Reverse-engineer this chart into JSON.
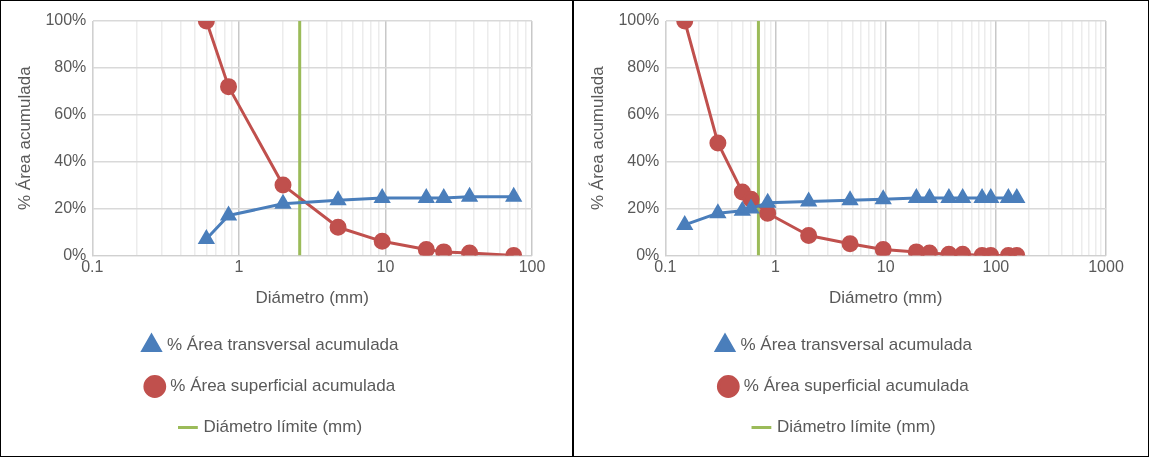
{
  "chart_data": [
    {
      "type": "line",
      "xlabel": "Diámetro (mm)",
      "ylabel": "% Área acumulada",
      "x": [
        0.6,
        0.85,
        2,
        4.75,
        9.5,
        19,
        25,
        37.5,
        75
      ],
      "series": [
        {
          "name": "% Área transversal acumulada",
          "color": "#4a7ebb",
          "marker": "triangle",
          "values": [
            7,
            17,
            22,
            23.5,
            24.5,
            24.5,
            24.5,
            25,
            25
          ]
        },
        {
          "name": "% Área superficial acumulada",
          "color": "#c0504d",
          "marker": "circle",
          "values": [
            100,
            72,
            30,
            12,
            6,
            2.5,
            1.5,
            1,
            0
          ]
        }
      ],
      "ref_lines": [
        {
          "axis": "x",
          "value": 2.6,
          "label": "Diámetro límite (mm)",
          "color": "#9bbb59"
        }
      ],
      "xlim": [
        0.1,
        100
      ],
      "xticks": [
        0.1,
        {
          "value": 0.2,
          "label": null
        },
        {
          "value": 0.3,
          "label": null
        },
        {
          "value": 0.4,
          "label": null
        },
        {
          "value": 0.5,
          "label": null
        },
        {
          "value": 0.6,
          "label": null
        },
        {
          "value": 0.7,
          "label": null
        },
        {
          "value": 0.8,
          "label": null
        },
        {
          "value": 0.9,
          "label": null
        },
        1,
        {
          "value": 2,
          "label": null
        },
        {
          "value": 3,
          "label": null
        },
        {
          "value": 4,
          "label": null
        },
        {
          "value": 5,
          "label": null
        },
        {
          "value": 6,
          "label": null
        },
        {
          "value": 7,
          "label": null
        },
        {
          "value": 8,
          "label": null
        },
        {
          "value": 9,
          "label": null
        },
        10,
        {
          "value": 20,
          "label": null
        },
        {
          "value": 30,
          "label": null
        },
        {
          "value": 40,
          "label": null
        },
        {
          "value": 50,
          "label": null
        },
        {
          "value": 60,
          "label": null
        },
        {
          "value": 70,
          "label": null
        },
        {
          "value": 80,
          "label": null
        },
        {
          "value": 90,
          "label": null
        },
        100
      ],
      "ylim": [
        0,
        100
      ],
      "yticks": [
        {
          "value": 0,
          "label": "0%"
        },
        {
          "value": 20,
          "label": "20%"
        },
        {
          "value": 40,
          "label": "40%"
        },
        {
          "value": 60,
          "label": "60%"
        },
        {
          "value": 80,
          "label": "80%"
        },
        {
          "value": 100,
          "label": "100%"
        }
      ],
      "log": "x",
      "grid": true,
      "legend": "bottom"
    },
    {
      "type": "line",
      "xlabel": "Diámetro (mm)",
      "ylabel": "% Área acumulada",
      "x": [
        0.15,
        0.3,
        0.5,
        0.6,
        0.85,
        2,
        4.75,
        9.5,
        19,
        25,
        37.5,
        50,
        75,
        90,
        130,
        155
      ],
      "series": [
        {
          "name": "% Área transversal acumulada",
          "color": "#4a7ebb",
          "marker": "triangle",
          "values": [
            13,
            18,
            19,
            20,
            22.5,
            23,
            23.5,
            24,
            24.5,
            24.5,
            24.5,
            24.5,
            24.5,
            24.5,
            24.5,
            24.5
          ]
        },
        {
          "name": "% Área superficial acumulada",
          "color": "#c0504d",
          "marker": "circle",
          "values": [
            100,
            48,
            27,
            24,
            18,
            8.5,
            5,
            2.5,
            1.5,
            1,
            0.5,
            0.5,
            0,
            0,
            0,
            0
          ]
        }
      ],
      "ref_lines": [
        {
          "axis": "x",
          "value": 0.7,
          "label": "Diámetro límite (mm)",
          "color": "#9bbb59"
        }
      ],
      "xlim": [
        0.1,
        1000
      ],
      "xticks": [
        0.1,
        {
          "value": 0.2,
          "label": null
        },
        {
          "value": 0.3,
          "label": null
        },
        {
          "value": 0.4,
          "label": null
        },
        {
          "value": 0.5,
          "label": null
        },
        {
          "value": 0.6,
          "label": null
        },
        {
          "value": 0.7,
          "label": null
        },
        {
          "value": 0.8,
          "label": null
        },
        {
          "value": 0.9,
          "label": null
        },
        1,
        {
          "value": 2,
          "label": null
        },
        {
          "value": 3,
          "label": null
        },
        {
          "value": 4,
          "label": null
        },
        {
          "value": 5,
          "label": null
        },
        {
          "value": 6,
          "label": null
        },
        {
          "value": 7,
          "label": null
        },
        {
          "value": 8,
          "label": null
        },
        {
          "value": 9,
          "label": null
        },
        10,
        {
          "value": 20,
          "label": null
        },
        {
          "value": 30,
          "label": null
        },
        {
          "value": 40,
          "label": null
        },
        {
          "value": 50,
          "label": null
        },
        {
          "value": 60,
          "label": null
        },
        {
          "value": 70,
          "label": null
        },
        {
          "value": 80,
          "label": null
        },
        {
          "value": 90,
          "label": null
        },
        100,
        {
          "value": 200,
          "label": null
        },
        {
          "value": 300,
          "label": null
        },
        {
          "value": 400,
          "label": null
        },
        {
          "value": 500,
          "label": null
        },
        {
          "value": 600,
          "label": null
        },
        {
          "value": 700,
          "label": null
        },
        {
          "value": 800,
          "label": null
        },
        {
          "value": 900,
          "label": null
        },
        1000
      ],
      "ylim": [
        0,
        100
      ],
      "yticks": [
        {
          "value": 0,
          "label": "0%"
        },
        {
          "value": 20,
          "label": "20%"
        },
        {
          "value": 40,
          "label": "40%"
        },
        {
          "value": 60,
          "label": "60%"
        },
        {
          "value": 80,
          "label": "80%"
        },
        {
          "value": 100,
          "label": "100%"
        }
      ],
      "log": "x",
      "grid": true,
      "legend": "bottom"
    }
  ]
}
